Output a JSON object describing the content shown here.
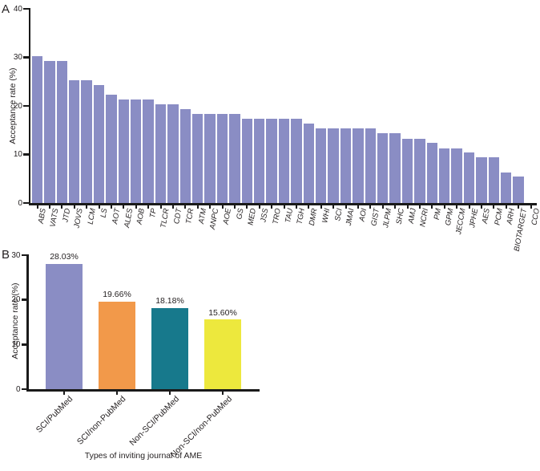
{
  "figure": {
    "panels": [
      {
        "label": "A"
      },
      {
        "label": "B"
      }
    ]
  },
  "chart_data": [
    {
      "type": "bar",
      "panel": "A",
      "title": "",
      "xlabel": "",
      "ylabel": "Acceptance rate (%)",
      "ylim": [
        0,
        40
      ],
      "yticks": [
        0,
        10,
        20,
        30,
        40
      ],
      "grid": false,
      "legend": false,
      "bar_color": "#8a8dc4",
      "categories": [
        "ABS",
        "VATS",
        "JTD",
        "JOVS",
        "LCM",
        "LS",
        "AOT",
        "ALES",
        "AOB",
        "TP",
        "TLCR",
        "CDT",
        "TCR",
        "ATM",
        "ANPC",
        "AOE",
        "GS",
        "MED",
        "JSS",
        "TRO",
        "TAU",
        "TGH",
        "DMR",
        "WHI",
        "SCI",
        "JMAI",
        "AOI",
        "GIST",
        "JLPM",
        "SHC",
        "AMJ",
        "NCRI",
        "PM",
        "GPM",
        "JECCM",
        "JPHE",
        "AES",
        "PCM",
        "ARH",
        "BIOTARGET",
        "CCO"
      ],
      "values": [
        30.3,
        29.3,
        29.3,
        25.3,
        25.3,
        24.3,
        22.3,
        21.3,
        21.3,
        21.3,
        20.3,
        20.3,
        19.3,
        18.3,
        18.3,
        18.3,
        18.3,
        17.3,
        17.3,
        17.3,
        17.3,
        17.3,
        16.3,
        15.3,
        15.3,
        15.3,
        15.3,
        15.3,
        14.3,
        14.3,
        13.3,
        13.3,
        12.4,
        11.3,
        11.3,
        10.4,
        9.4,
        9.4,
        6.3,
        5.4,
        0
      ]
    },
    {
      "type": "bar",
      "panel": "B",
      "title": "",
      "xlabel": "Types of inviting journal of AME",
      "ylabel": "Acceptance rate (%)",
      "ylim": [
        0,
        30
      ],
      "yticks": [
        0,
        10,
        20,
        30
      ],
      "grid": false,
      "legend": false,
      "bar_colors": [
        "#8a8dc4",
        "#f2994a",
        "#17798c",
        "#ede83d"
      ],
      "categories": [
        "SCI/PubMed",
        "SCI/non-PubMed",
        "Non-SCI/PubMed",
        "Non-SCI/non-PubMed"
      ],
      "values": [
        28.03,
        19.66,
        18.18,
        15.6
      ],
      "data_labels": [
        "28.03%",
        "19.66%",
        "18.18%",
        "15.60%"
      ]
    }
  ]
}
